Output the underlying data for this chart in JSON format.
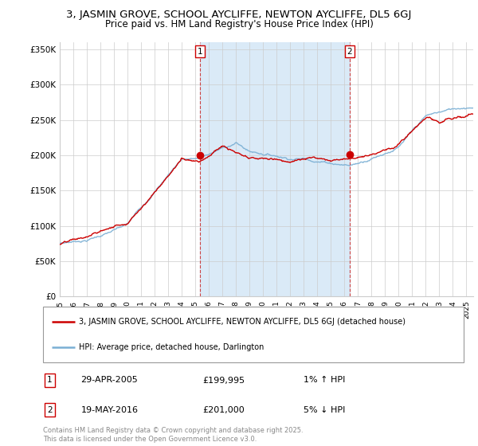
{
  "title_line1": "3, JASMIN GROVE, SCHOOL AYCLIFFE, NEWTON AYCLIFFE, DL5 6GJ",
  "title_line2": "Price paid vs. HM Land Registry's House Price Index (HPI)",
  "ytick_labels": [
    "£0",
    "£50K",
    "£100K",
    "£150K",
    "£200K",
    "£250K",
    "£300K",
    "£350K"
  ],
  "ytick_values": [
    0,
    50000,
    100000,
    150000,
    200000,
    250000,
    300000,
    350000
  ],
  "ylim": [
    0,
    360000
  ],
  "sale1_date": "29-APR-2005",
  "sale1_price": 199995,
  "sale1_price_str": "£199,995",
  "sale1_hpi": "1% ↑ HPI",
  "sale2_date": "19-MAY-2016",
  "sale2_price": 201000,
  "sale2_price_str": "£201,000",
  "sale2_hpi": "5% ↓ HPI",
  "legend_line1": "3, JASMIN GROVE, SCHOOL AYCLIFFE, NEWTON AYCLIFFE, DL5 6GJ (detached house)",
  "legend_line2": "HPI: Average price, detached house, Darlington",
  "footer": "Contains HM Land Registry data © Crown copyright and database right 2025.\nThis data is licensed under the Open Government Licence v3.0.",
  "house_color": "#cc0000",
  "hpi_color": "#7aafd4",
  "fill_color": "#daeaf7",
  "background_color": "#ffffff",
  "grid_color": "#cccccc",
  "sale1_x_year": 2005.33,
  "sale2_x_year": 2016.38,
  "xmin": 1995,
  "xmax": 2025.5,
  "title_fontsize": 9.5,
  "subtitle_fontsize": 8.5
}
